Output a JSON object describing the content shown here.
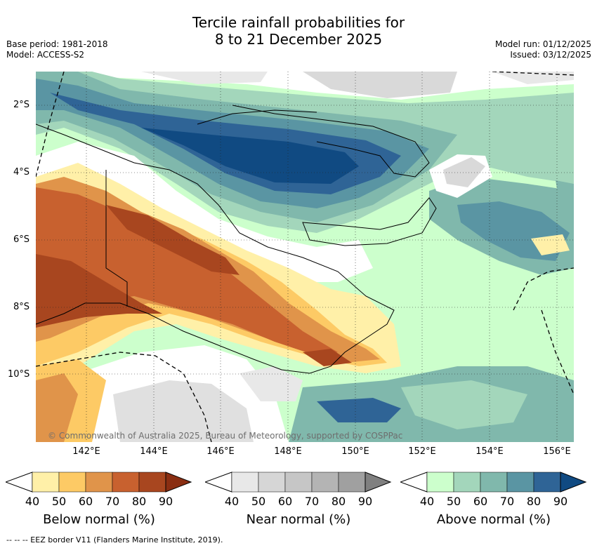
{
  "title_line1": "Tercile rainfall probabilities for",
  "title_line2": "8 to 21 December 2025",
  "base_period": "Base period: 1981-2018",
  "model": "Model: ACCESS-S2",
  "model_run": "Model run: 01/12/2025",
  "issued": "Issued: 03/12/2025",
  "lat_labels": [
    "2°S",
    "4°S",
    "6°S",
    "8°S",
    "10°S"
  ],
  "lon_labels": [
    "142°E",
    "144°E",
    "146°E",
    "148°E",
    "150°E",
    "152°E",
    "154°E",
    "156°E"
  ],
  "copyright": "© Commonwealth of Australia 2025, Bureau of Meteorology, supported by COSPPac",
  "footer": "-- -- -- EEZ border V11 (Flanders Marine Institute, 2019).",
  "colorbars": [
    {
      "title": "Below normal (%)",
      "ticks": [
        "40",
        "50",
        "60",
        "70",
        "80",
        "90"
      ],
      "colors": [
        "#fff0a8",
        "#fdca65",
        "#e0944a",
        "#c8612f",
        "#a8461f",
        "#8a2e12"
      ]
    },
    {
      "title": "Near normal (%)",
      "ticks": [
        "40",
        "50",
        "60",
        "70",
        "80",
        "90"
      ],
      "colors": [
        "#e8e8e8",
        "#d6d6d6",
        "#c6c6c6",
        "#b4b4b4",
        "#a0a0a0",
        "#808080"
      ]
    },
    {
      "title": "Above normal (%)",
      "ticks": [
        "40",
        "50",
        "60",
        "70",
        "80",
        "90"
      ],
      "colors": [
        "#ccffcc",
        "#a3d6bb",
        "#80b8ac",
        "#5a95a3",
        "#2f6496",
        "#104a82"
      ]
    }
  ]
}
